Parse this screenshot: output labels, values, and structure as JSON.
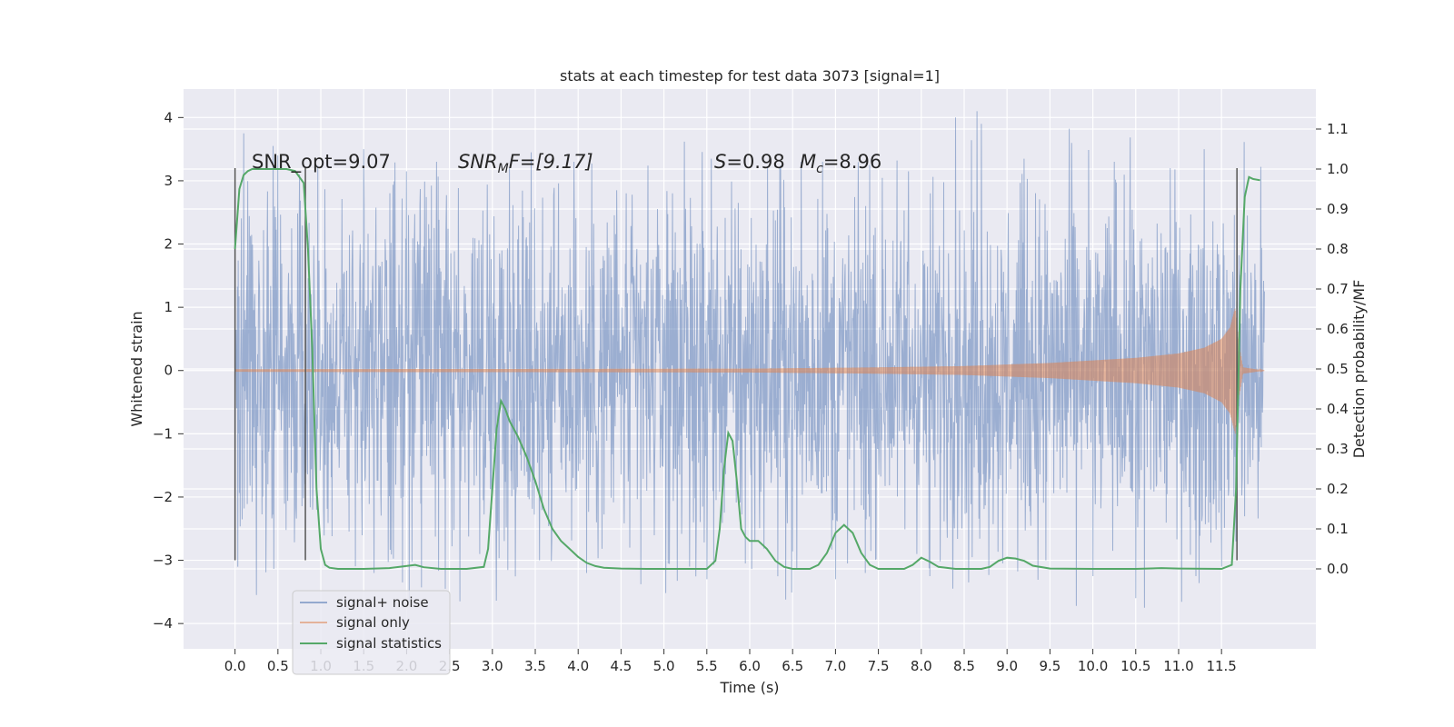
{
  "chart_data": {
    "type": "line",
    "title": "stats at each timestep for test data 3073 [signal=1]",
    "xlabel": "Time (s)",
    "ylabel_left": "Whitened strain",
    "ylabel_right": "Detection probability/MF",
    "xlim": [
      -0.6,
      12.6
    ],
    "ylim_left": [
      -4.4,
      4.45
    ],
    "ylim_right": [
      -0.2,
      1.2
    ],
    "x_ticks": [
      0.0,
      0.5,
      1.0,
      1.5,
      2.0,
      2.5,
      3.0,
      3.5,
      4.0,
      4.5,
      5.0,
      5.5,
      6.0,
      6.5,
      7.0,
      7.5,
      8.0,
      8.5,
      9.0,
      9.5,
      10.0,
      10.5,
      11.0,
      11.5
    ],
    "x_tick_labels": [
      "0.0",
      "0.5",
      "1.0",
      "1.5",
      "2.0",
      "2.5",
      "3.0",
      "3.5",
      "4.0",
      "4.5",
      "5.0",
      "5.5",
      "6.0",
      "6.5",
      "7.0",
      "7.5",
      "8.0",
      "8.5",
      "9.0",
      "9.5",
      "10.0",
      "10.5",
      "11.0",
      "11.5"
    ],
    "y_left_ticks": [
      -4,
      -3,
      -2,
      -1,
      0,
      1,
      2,
      3,
      4
    ],
    "y_left_tick_labels": [
      "−4",
      "−3",
      "−2",
      "−1",
      "0",
      "1",
      "2",
      "3",
      "4"
    ],
    "y_right_ticks": [
      0.0,
      0.1,
      0.2,
      0.3,
      0.4,
      0.5,
      0.6,
      0.7,
      0.8,
      0.9,
      1.0,
      1.1
    ],
    "y_right_tick_labels": [
      "0.0",
      "0.1",
      "0.2",
      "0.3",
      "0.4",
      "0.5",
      "0.6",
      "0.7",
      "0.8",
      "0.9",
      "1.0",
      "1.1"
    ],
    "grid": true,
    "background": "#eaeaf2",
    "legend_position": "lower-left",
    "legend": [
      {
        "label": "signal+ noise",
        "color": "#4c72b0"
      },
      {
        "label": "signal only",
        "color": "#dd8452"
      },
      {
        "label": "signal statistics",
        "color": "#55a868"
      }
    ],
    "annotations": {
      "snr_opt": "SNR_opt=9.07",
      "snr_mf_base": "SNR",
      "snr_mf_sub": "M",
      "snr_mf_rest": "F=[9.17]",
      "s_text": "S",
      "s_value": "=0.98",
      "mc_base": "M",
      "mc_sub": "c",
      "mc_value": "=8.96"
    },
    "vertical_markers": [
      0.0,
      0.82,
      11.68
    ],
    "vertical_marker_range": [
      -3.0,
      3.2
    ],
    "signal_noise": {
      "color": "#4c72b0",
      "alpha": 0.5,
      "x_range": [
        0.0,
        12.0
      ],
      "base_envelope": 1.35,
      "peaks": [
        {
          "x": 0.1,
          "y": 3.75
        },
        {
          "x": 0.25,
          "y": -3.55
        },
        {
          "x": 0.5,
          "y": 3.4
        },
        {
          "x": 0.75,
          "y": 3.1
        },
        {
          "x": 0.95,
          "y": -2.2
        },
        {
          "x": 1.5,
          "y": 3.5
        },
        {
          "x": 1.62,
          "y": -3.2
        },
        {
          "x": 1.95,
          "y": -3.35
        },
        {
          "x": 2.0,
          "y": 3.15
        },
        {
          "x": 2.35,
          "y": 3.3
        },
        {
          "x": 2.45,
          "y": -3.45
        },
        {
          "x": 2.62,
          "y": -3.65
        },
        {
          "x": 2.85,
          "y": -2.9
        },
        {
          "x": 3.2,
          "y": 3.2
        },
        {
          "x": 3.45,
          "y": 3.45
        },
        {
          "x": 3.55,
          "y": -3.0
        },
        {
          "x": 3.95,
          "y": 3.3
        },
        {
          "x": 4.1,
          "y": -3.2
        },
        {
          "x": 4.45,
          "y": 2.85
        },
        {
          "x": 4.6,
          "y": -2.8
        },
        {
          "x": 5.1,
          "y": 2.8
        },
        {
          "x": 5.3,
          "y": -3.1
        },
        {
          "x": 5.5,
          "y": -3.3
        },
        {
          "x": 5.55,
          "y": 3.35
        },
        {
          "x": 5.95,
          "y": -3.05
        },
        {
          "x": 6.35,
          "y": 3.2
        },
        {
          "x": 6.55,
          "y": -3.15
        },
        {
          "x": 6.6,
          "y": 3.3
        },
        {
          "x": 6.85,
          "y": 3.3
        },
        {
          "x": 7.0,
          "y": -3.3
        },
        {
          "x": 7.35,
          "y": -3.2
        },
        {
          "x": 7.4,
          "y": 3.25
        },
        {
          "x": 7.85,
          "y": 3.15
        },
        {
          "x": 8.1,
          "y": -3.25
        },
        {
          "x": 8.4,
          "y": 4.0
        },
        {
          "x": 8.55,
          "y": -3.35
        },
        {
          "x": 8.65,
          "y": 4.1
        },
        {
          "x": 8.7,
          "y": 3.9
        },
        {
          "x": 8.95,
          "y": -3.05
        },
        {
          "x": 9.2,
          "y": 3.35
        },
        {
          "x": 9.45,
          "y": -3.0
        },
        {
          "x": 9.75,
          "y": 3.6
        },
        {
          "x": 10.0,
          "y": -3.25
        },
        {
          "x": 10.25,
          "y": 3.3
        },
        {
          "x": 10.5,
          "y": -3.6
        },
        {
          "x": 10.6,
          "y": -3.75
        },
        {
          "x": 10.9,
          "y": 3.2
        },
        {
          "x": 11.2,
          "y": -3.25
        },
        {
          "x": 11.3,
          "y": 3.5
        },
        {
          "x": 11.5,
          "y": -3.1
        },
        {
          "x": 11.8,
          "y": 2.45
        }
      ]
    },
    "signal_only": {
      "color": "#dd8452",
      "alpha": 0.55,
      "envelope": [
        {
          "x": 0.0,
          "y": 0.02
        },
        {
          "x": 6.0,
          "y": 0.03
        },
        {
          "x": 7.5,
          "y": 0.05
        },
        {
          "x": 8.5,
          "y": 0.07
        },
        {
          "x": 9.5,
          "y": 0.12
        },
        {
          "x": 10.0,
          "y": 0.16
        },
        {
          "x": 10.5,
          "y": 0.2
        },
        {
          "x": 11.0,
          "y": 0.27
        },
        {
          "x": 11.3,
          "y": 0.36
        },
        {
          "x": 11.5,
          "y": 0.5
        },
        {
          "x": 11.6,
          "y": 0.68
        },
        {
          "x": 11.66,
          "y": 1.0
        },
        {
          "x": 11.7,
          "y": 0.45
        },
        {
          "x": 11.75,
          "y": 0.05
        },
        {
          "x": 12.0,
          "y": 0.0
        }
      ]
    },
    "signal_statistics": {
      "color": "#55a868",
      "x": [
        0.0,
        0.05,
        0.1,
        0.15,
        0.2,
        0.3,
        0.4,
        0.5,
        0.6,
        0.7,
        0.8,
        0.85,
        0.9,
        0.95,
        1.0,
        1.05,
        1.1,
        1.2,
        1.5,
        1.8,
        2.1,
        2.2,
        2.4,
        2.7,
        2.9,
        2.95,
        3.0,
        3.05,
        3.1,
        3.15,
        3.2,
        3.3,
        3.4,
        3.5,
        3.6,
        3.7,
        3.8,
        3.9,
        4.0,
        4.1,
        4.2,
        4.3,
        4.5,
        4.8,
        5.0,
        5.3,
        5.5,
        5.6,
        5.65,
        5.7,
        5.75,
        5.8,
        5.85,
        5.9,
        5.95,
        6.0,
        6.1,
        6.2,
        6.3,
        6.4,
        6.5,
        6.7,
        6.8,
        6.9,
        7.0,
        7.1,
        7.2,
        7.3,
        7.4,
        7.5,
        7.6,
        7.8,
        7.9,
        8.0,
        8.1,
        8.2,
        8.4,
        8.7,
        8.8,
        8.9,
        9.0,
        9.1,
        9.2,
        9.3,
        9.5,
        10.0,
        10.5,
        10.8,
        11.0,
        11.5,
        11.62,
        11.67,
        11.72,
        11.77,
        11.82,
        11.87,
        11.95
      ],
      "values": [
        0.8,
        0.95,
        0.985,
        0.995,
        1.0,
        1.0,
        1.0,
        1.0,
        1.0,
        0.995,
        0.965,
        0.8,
        0.55,
        0.2,
        0.05,
        0.01,
        0.003,
        0.0,
        0.0,
        0.002,
        0.01,
        0.004,
        0.0,
        0.0,
        0.005,
        0.05,
        0.2,
        0.35,
        0.42,
        0.4,
        0.37,
        0.33,
        0.28,
        0.22,
        0.15,
        0.1,
        0.07,
        0.05,
        0.03,
        0.015,
        0.007,
        0.003,
        0.001,
        0.0,
        0.0,
        0.0,
        0.0,
        0.02,
        0.1,
        0.25,
        0.34,
        0.32,
        0.22,
        0.1,
        0.08,
        0.07,
        0.07,
        0.05,
        0.02,
        0.005,
        0.0,
        0.0,
        0.01,
        0.04,
        0.09,
        0.11,
        0.09,
        0.04,
        0.01,
        0.0,
        0.0,
        0.0,
        0.01,
        0.028,
        0.018,
        0.005,
        0.0,
        0.0,
        0.005,
        0.02,
        0.028,
        0.026,
        0.02,
        0.008,
        0.001,
        0.0,
        0.0,
        0.002,
        0.001,
        0.0,
        0.01,
        0.2,
        0.7,
        0.93,
        0.98,
        0.975,
        0.972
      ]
    }
  }
}
